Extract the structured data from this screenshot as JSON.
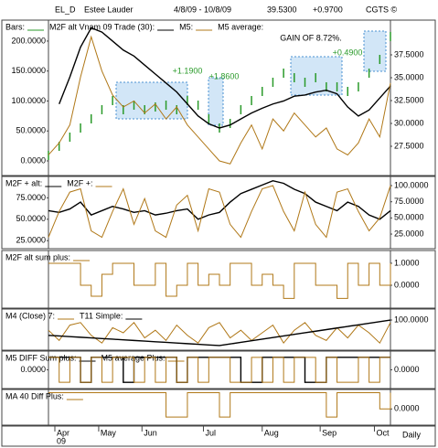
{
  "header": {
    "symbol": "EL_D",
    "name": "Estee Lauder",
    "range": "4/8/09 - 10/8/09",
    "price": "39.5300",
    "change": "+0.9700",
    "credit": "CGTS ©"
  },
  "x_axis": {
    "xlim": [
      0,
      128
    ],
    "xticks": [
      {
        "value": 2.4,
        "label": "Apr"
      },
      {
        "value": 18.8,
        "label": "May"
      },
      {
        "value": 35,
        "label": "Jun"
      },
      {
        "value": 58,
        "label": "Jul"
      },
      {
        "value": 80,
        "label": "Aug"
      },
      {
        "value": 101.7,
        "label": "Sep"
      },
      {
        "value": 122,
        "label": "Oct"
      }
    ],
    "year": "09",
    "period": "Daily"
  },
  "chart_data": [
    {
      "type": "line",
      "legend_extra": "M5 average:",
      "annotations": [
        "+1.1900",
        "+1.8600",
        "+0.4900",
        "GAIN OF 8.72%."
      ],
      "x": [
        0,
        4,
        8,
        12,
        16,
        20,
        24,
        28,
        32,
        36,
        40,
        44,
        48,
        52,
        56,
        60,
        64,
        68,
        72,
        76,
        80,
        84,
        88,
        92,
        96,
        100,
        104,
        108,
        112,
        116,
        120,
        124,
        128
      ],
      "ylim": [
        -24.4,
        235
      ],
      "yticks": [
        {
          "value": 0,
          "label": "0.0000"
        },
        {
          "value": 50,
          "label": "50.0000"
        },
        {
          "value": 100,
          "label": "100.0000"
        },
        {
          "value": 150,
          "label": "150.0000"
        },
        {
          "value": 200,
          "label": "200.0000"
        }
      ],
      "y2lim": [
        24.3,
        41.3
      ],
      "y2ticks": [
        {
          "value": 27.5,
          "label": "27.5000"
        },
        {
          "value": 30,
          "label": "30.0000"
        },
        {
          "value": 32.5,
          "label": "32.5000"
        },
        {
          "value": 35,
          "label": "35.0000"
        },
        {
          "value": 37.5,
          "label": "37.5000"
        }
      ],
      "series": [
        {
          "name": "Bars:",
          "color": "#2a9a2a",
          "style": "tick",
          "axis": "y2",
          "values": [
            26.5,
            27.5,
            28.5,
            29.5,
            30.5,
            31.5,
            32.5,
            31.5,
            32,
            31.5,
            31.8,
            32,
            31.5,
            32.5,
            32,
            30.5,
            29.5,
            30,
            31.5,
            32.5,
            33.5,
            34.5,
            35.5,
            35,
            34.5,
            35,
            34,
            34,
            33.5,
            34,
            35.5,
            37,
            39.5
          ]
        },
        {
          "name": "M2F alt Vnam 09 Trade (30):",
          "color": "#000000",
          "values": [
            null,
            95,
            140,
            190,
            222,
            215,
            200,
            185,
            175,
            160,
            145,
            130,
            115,
            95,
            75,
            62,
            55,
            60,
            70,
            80,
            88,
            95,
            100,
            108,
            110,
            115,
            118,
            112,
            90,
            75,
            85,
            105,
            125
          ]
        },
        {
          "name": "M5:",
          "color": "#b07818",
          "values": [
            10,
            30,
            60,
            140,
            207,
            150,
            110,
            90,
            100,
            80,
            95,
            70,
            90,
            60,
            40,
            20,
            0,
            -5,
            30,
            60,
            20,
            70,
            50,
            80,
            60,
            40,
            55,
            20,
            10,
            30,
            70,
            40,
            130
          ]
        }
      ]
    },
    {
      "type": "line",
      "x": [
        0,
        4,
        8,
        12,
        16,
        20,
        24,
        28,
        32,
        36,
        40,
        44,
        48,
        52,
        56,
        60,
        64,
        68,
        72,
        76,
        80,
        84,
        88,
        92,
        96,
        100,
        104,
        108,
        112,
        116,
        120,
        124,
        128
      ],
      "ylim": [
        15.6,
        100
      ],
      "yticks": [
        {
          "value": 25,
          "label": "25.0000"
        },
        {
          "value": 50,
          "label": "50.0000"
        },
        {
          "value": 75,
          "label": "75.0000"
        }
      ],
      "y2lim": [
        2.4,
        114.2
      ],
      "y2ticks": [
        {
          "value": 25,
          "label": "25.0000"
        },
        {
          "value": 50,
          "label": "50.0000"
        },
        {
          "value": 75,
          "label": "75.0000"
        },
        {
          "value": 100,
          "label": "100.0000"
        }
      ],
      "series": [
        {
          "name": "M2F + alt:",
          "color": "#000000",
          "values": [
            60,
            58,
            62,
            70,
            55,
            60,
            65,
            62,
            58,
            60,
            55,
            57,
            60,
            62,
            50,
            55,
            58,
            70,
            80,
            85,
            90,
            95,
            92,
            85,
            80,
            70,
            65,
            60,
            70,
            65,
            55,
            50,
            60
          ]
        },
        {
          "name": "M2F +:",
          "color": "#b07818",
          "axis": "y2",
          "values": [
            20,
            60,
            90,
            95,
            30,
            20,
            60,
            95,
            40,
            80,
            30,
            20,
            70,
            85,
            30,
            95,
            90,
            40,
            20,
            60,
            95,
            100,
            60,
            30,
            90,
            40,
            20,
            90,
            95,
            60,
            30,
            50,
            100
          ]
        }
      ]
    },
    {
      "type": "step",
      "x": [
        0,
        4,
        8,
        12,
        16,
        20,
        24,
        28,
        32,
        36,
        40,
        44,
        48,
        52,
        56,
        60,
        64,
        68,
        72,
        76,
        80,
        84,
        88,
        92,
        96,
        100,
        104,
        108,
        112,
        116,
        120,
        124,
        128
      ],
      "ylim": [
        -1.04,
        1.58
      ],
      "y2ticks": [
        {
          "value": 0,
          "label": "0.0000"
        },
        {
          "value": 1,
          "label": "1.0000"
        }
      ],
      "series": [
        {
          "name": "M2F alt sum plus:",
          "color": "#b07818",
          "values": [
            1,
            1,
            1,
            0,
            -0.5,
            0.5,
            1,
            1,
            0,
            0,
            1,
            -0.5,
            0,
            1,
            0,
            0.5,
            0,
            1,
            1,
            0,
            0.5,
            0,
            -0.6,
            1,
            1,
            0,
            0,
            -0.6,
            1,
            0,
            1,
            0,
            1
          ]
        }
      ]
    },
    {
      "type": "line",
      "x": [
        0,
        4,
        8,
        12,
        16,
        20,
        24,
        28,
        32,
        36,
        40,
        44,
        48,
        52,
        56,
        60,
        64,
        68,
        72,
        76,
        80,
        84,
        88,
        92,
        96,
        100,
        104,
        108,
        112,
        116,
        120,
        124,
        128
      ],
      "ylim": [
        -18,
        143
      ],
      "y2ticks": [
        {
          "value": 100,
          "label": "100.0000"
        }
      ],
      "series": [
        {
          "name": "M4 (Close) 7:",
          "color": "#b07818",
          "values": [
            60,
            20,
            80,
            90,
            40,
            10,
            70,
            50,
            90,
            30,
            60,
            20,
            80,
            40,
            10,
            70,
            90,
            30,
            60,
            20,
            50,
            80,
            10,
            60,
            90,
            40,
            20,
            70,
            30,
            80,
            50,
            10,
            90
          ]
        },
        {
          "name": "T11 Simple:",
          "color": "#000000",
          "values": [
            40,
            37.5,
            35,
            32.5,
            30,
            27.5,
            25,
            22.5,
            20,
            17.5,
            15,
            12.5,
            10,
            7.5,
            5,
            2.5,
            0,
            6.25,
            12.5,
            18.75,
            25,
            31.25,
            37.5,
            43.75,
            50,
            56.25,
            62.5,
            68.75,
            75,
            81.25,
            87.5,
            93.75,
            100
          ]
        }
      ]
    },
    {
      "type": "step",
      "x": [
        0,
        4,
        8,
        12,
        16,
        20,
        24,
        28,
        32,
        36,
        40,
        44,
        48,
        52,
        56,
        60,
        64,
        68,
        72,
        76,
        80,
        84,
        88,
        92,
        96,
        100,
        104,
        108,
        112,
        116,
        120,
        124,
        128
      ],
      "ylim": [
        -1.5,
        1.5
      ],
      "yticks": [
        {
          "value": 0,
          "label": "0.0000"
        }
      ],
      "y2ticks": [
        {
          "value": 0,
          "label": "0.0000"
        }
      ],
      "series": [
        {
          "name": "M5 DIFF Sum plus:",
          "color": "#000000",
          "values": [
            1,
            1,
            1,
            -1,
            1,
            1,
            1,
            -1,
            1,
            1,
            1,
            1,
            -1,
            1,
            1,
            1,
            1,
            1,
            -1,
            -1,
            1,
            1,
            1,
            1,
            -1,
            -1,
            1,
            1,
            1,
            1,
            1,
            1,
            1
          ]
        },
        {
          "name": "M5 average Plus:",
          "color": "#b07818",
          "values": [
            1,
            -1,
            1,
            -1,
            1,
            -1,
            1,
            1,
            -1,
            1,
            -1,
            1,
            -1,
            1,
            -1,
            1,
            1,
            -1,
            -1,
            1,
            -1,
            1,
            -1,
            1,
            1,
            -1,
            1,
            -1,
            -1,
            1,
            -1,
            1,
            1
          ]
        }
      ]
    },
    {
      "type": "step",
      "x": [
        0,
        4,
        8,
        12,
        16,
        20,
        24,
        28,
        32,
        36,
        40,
        44,
        48,
        52,
        56,
        60,
        64,
        68,
        72,
        76,
        80,
        84,
        88,
        92,
        96,
        100,
        104,
        108,
        112,
        116,
        120,
        124,
        128
      ],
      "ylim": [
        -1,
        1.2
      ],
      "y2ticks": [
        {
          "value": 0,
          "label": "0.0000"
        }
      ],
      "series": [
        {
          "name": "MA 40 Diff Plus:",
          "color": "#b07818",
          "values": [
            1,
            1,
            1,
            1,
            1,
            1,
            1,
            1,
            1,
            1,
            1,
            -0.5,
            -0.5,
            1,
            1,
            1,
            -0.5,
            1,
            1,
            1,
            1,
            1,
            1,
            1,
            1,
            1,
            -0.5,
            1,
            1,
            1,
            1,
            0,
            1
          ]
        }
      ]
    }
  ]
}
